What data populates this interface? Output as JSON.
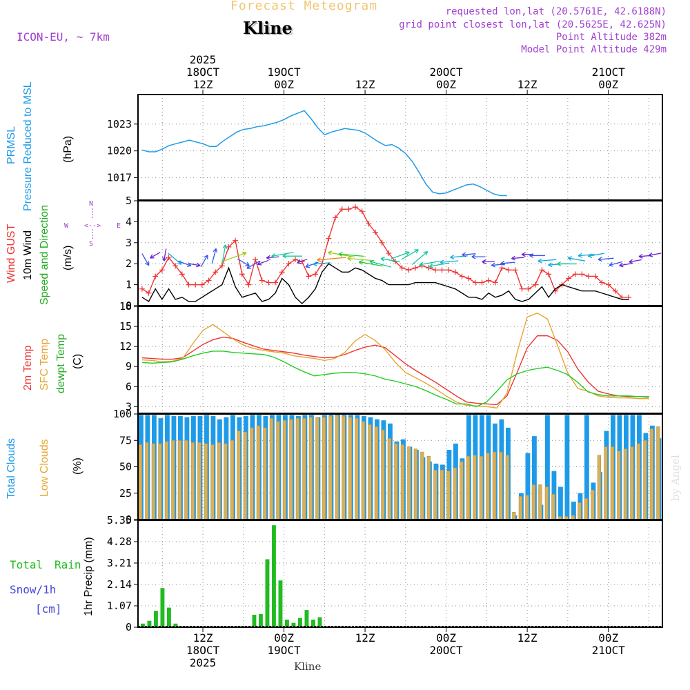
{
  "header": {
    "title": "Forecast Meteogram",
    "location": "Kline",
    "model": "ICON-EU, ~ 7km",
    "requested": "requested lon,lat (20.5761E, 42.6188N)",
    "grid": "grid point closest lon,lat (20.5625E, 42.625N)",
    "point_alt": "Point Altitude 382m",
    "model_alt": "Model Point Altitude 429m",
    "footer_location": "Kline",
    "watermark": "by Angel"
  },
  "time_axis": {
    "top": [
      {
        "t": 12,
        "l1": "2025",
        "l2": "18OCT",
        "l3": "12Z"
      },
      {
        "t": 24,
        "l1": "",
        "l2": "19OCT",
        "l3": "00Z"
      },
      {
        "t": 36,
        "l1": "",
        "l2": "",
        "l3": "12Z"
      },
      {
        "t": 48,
        "l1": "",
        "l2": "20OCT",
        "l3": "00Z"
      },
      {
        "t": 60,
        "l1": "",
        "l2": "",
        "l3": "12Z"
      },
      {
        "t": 72,
        "l1": "",
        "l2": "21OCT",
        "l3": "00Z"
      }
    ],
    "bottom": [
      {
        "t": 12,
        "l1": "12Z",
        "l2": "18OCT",
        "l3": "2025"
      },
      {
        "t": 24,
        "l1": "00Z",
        "l2": "19OCT",
        "l3": ""
      },
      {
        "t": 36,
        "l1": "12Z",
        "l2": "",
        "l3": ""
      },
      {
        "t": 48,
        "l1": "00Z",
        "l2": "20OCT",
        "l3": ""
      },
      {
        "t": 60,
        "l1": "12Z",
        "l2": "",
        "l3": ""
      },
      {
        "t": 72,
        "l1": "00Z",
        "l2": "21OCT",
        "l3": ""
      }
    ]
  },
  "panel_labels": {
    "pressure": {
      "a": "PRMSL",
      "b": "Pressure Reduced to MSL",
      "unit": "(hPa)"
    },
    "wind": {
      "a": "Wind GUST",
      "b": "10m Wind",
      "c": "Speed and Direction",
      "unit": "(m/s)",
      "compass_n": "N",
      "compass_s": "S",
      "compass_w": "W",
      "compass_e": "E"
    },
    "temp": {
      "a": "2m Temp",
      "b": "SFC Temp",
      "c": "dewpt Temp",
      "unit": "(C)"
    },
    "clouds": {
      "a": "Total Clouds",
      "b": "Low Clouds",
      "unit": "(%)"
    },
    "precip": {
      "a": "Total",
      "b": "Rain",
      "c": "Snow/1h",
      "d": "[cm]",
      "unit": "1hr Precip (mm)"
    }
  },
  "colors": {
    "pressure": "#1e9be8",
    "gust": "#ee3333",
    "wind": "#000000",
    "t2m": "#ee3333",
    "tsfc": "#e6a532",
    "dewpt": "#22cc22",
    "total_clouds": "#1e9be8",
    "low_clouds": "#d7b05c",
    "rain": "#22bb22",
    "snow": "#4444dd",
    "title": "#f0c674",
    "purple": "#a040d0"
  },
  "chart_data": [
    {
      "type": "line",
      "title": "PRMSL Pressure Reduced to MSL",
      "ylabel": "(hPa)",
      "ylim": [
        1014.5,
        1026.3
      ],
      "yticks": [
        1017,
        1020,
        1023
      ],
      "x_hours_start": 3,
      "series": [
        {
          "name": "PRMSL",
          "values": [
            1020.1,
            1019.9,
            1019.9,
            1020.2,
            1020.6,
            1020.8,
            1021.0,
            1021.2,
            1021.0,
            1020.8,
            1020.5,
            1020.5,
            1021.1,
            1021.6,
            1022.1,
            1022.4,
            1022.5,
            1022.7,
            1022.8,
            1023.0,
            1023.2,
            1023.5,
            1023.9,
            1024.2,
            1024.5,
            1023.6,
            1022.6,
            1021.8,
            1022.1,
            1022.3,
            1022.5,
            1022.4,
            1022.3,
            1022.0,
            1021.5,
            1021.0,
            1020.6,
            1020.7,
            1020.3,
            1019.7,
            1018.8,
            1017.6,
            1016.3,
            1015.4,
            1015.2,
            1015.3,
            1015.6,
            1015.9,
            1016.2,
            1016.3,
            1016.0,
            1015.6,
            1015.2,
            1015.0,
            1015.0
          ]
        }
      ]
    },
    {
      "type": "line",
      "title": "Wind GUST / 10m Wind Speed and Direction",
      "ylabel": "(m/s)",
      "ylim": [
        0,
        5
      ],
      "yticks": [
        0,
        1,
        2,
        3,
        4,
        5
      ],
      "x_hours_start": 3,
      "series": [
        {
          "name": "Wind GUST",
          "values": [
            0.8,
            0.6,
            1.4,
            1.7,
            2.3,
            1.9,
            1.5,
            1.0,
            1.0,
            1.0,
            1.2,
            1.6,
            1.9,
            2.8,
            3.1,
            1.5,
            1.0,
            2.2,
            1.2,
            1.1,
            1.1,
            1.6,
            2.0,
            2.2,
            2.1,
            1.4,
            1.5,
            2.0,
            3.2,
            4.2,
            4.6,
            4.6,
            4.7,
            4.5,
            3.9,
            3.5,
            3.0,
            2.5,
            2.1,
            1.8,
            1.7,
            1.8,
            1.9,
            1.8,
            1.7,
            1.7,
            1.7,
            1.6,
            1.4,
            1.3,
            1.1,
            1.1,
            1.2,
            1.1,
            1.8,
            1.7,
            1.7,
            0.8,
            0.8,
            1.0,
            1.7,
            1.5,
            0.7,
            1.0,
            1.3,
            1.5,
            1.5,
            1.4,
            1.4,
            1.1,
            1.0,
            0.7,
            0.4,
            0.4
          ]
        },
        {
          "name": "10m Wind",
          "values": [
            0.4,
            0.2,
            0.8,
            0.3,
            0.8,
            0.3,
            0.4,
            0.2,
            0.2,
            0.4,
            0.6,
            0.8,
            1.0,
            1.8,
            0.9,
            0.4,
            0.5,
            0.6,
            0.2,
            0.3,
            0.6,
            1.3,
            1.0,
            0.4,
            0.1,
            0.4,
            0.8,
            1.6,
            2.0,
            1.8,
            1.6,
            1.6,
            1.8,
            1.7,
            1.5,
            1.3,
            1.2,
            1.0,
            1.0,
            1.0,
            1.0,
            1.1,
            1.1,
            1.1,
            1.1,
            1.0,
            0.9,
            0.8,
            0.6,
            0.4,
            0.4,
            0.3,
            0.6,
            0.4,
            0.5,
            0.7,
            0.3,
            0.2,
            0.3,
            0.6,
            0.9,
            0.4,
            0.8,
            1.0,
            0.9,
            0.8,
            0.7,
            0.7,
            0.7,
            0.6,
            0.5,
            0.4,
            0.3,
            0.3
          ]
        }
      ]
    },
    {
      "type": "line",
      "title": "2m Temp / SFC Temp / dewpt Temp",
      "ylabel": "(C)",
      "ylim": [
        2,
        18
      ],
      "yticks": [
        3,
        6,
        9,
        12,
        15,
        18
      ],
      "x_hours_start": 3,
      "series": [
        {
          "name": "2m Temp",
          "values": [
            10.3,
            10.2,
            10.1,
            10.1,
            10.3,
            11.3,
            12.3,
            13.0,
            13.4,
            13.2,
            12.6,
            12.1,
            11.6,
            11.4,
            11.2,
            11.0,
            10.7,
            10.5,
            10.3,
            10.4,
            10.8,
            11.4,
            11.9,
            12.2,
            11.8,
            10.6,
            9.4,
            8.4,
            7.5,
            6.6,
            5.6,
            4.6,
            3.7,
            3.5,
            3.4,
            3.3,
            4.6,
            8.1,
            11.8,
            13.6,
            13.6,
            12.9,
            11.2,
            8.6,
            6.7,
            5.3,
            4.9,
            4.6,
            4.5,
            4.5,
            4.4
          ]
        },
        {
          "name": "SFC Temp",
          "values": [
            10.0,
            9.9,
            9.7,
            9.8,
            10.2,
            12.4,
            14.4,
            15.3,
            14.2,
            13.1,
            12.2,
            11.7,
            11.4,
            11.2,
            11.0,
            10.6,
            10.4,
            10.2,
            9.9,
            10.2,
            11.1,
            12.8,
            13.8,
            12.9,
            11.5,
            9.6,
            8.1,
            7.3,
            6.5,
            5.6,
            4.6,
            3.7,
            3.2,
            3.1,
            3.0,
            2.8,
            5.0,
            11.1,
            16.4,
            17.0,
            16.1,
            12.1,
            8.0,
            5.7,
            5.3,
            4.6,
            4.4,
            4.3,
            4.3,
            4.2,
            4.2
          ]
        },
        {
          "name": "dewpt Temp",
          "values": [
            9.6,
            9.5,
            9.6,
            9.7,
            10.1,
            10.6,
            11.0,
            11.3,
            11.3,
            11.1,
            11.0,
            10.9,
            10.8,
            10.4,
            9.7,
            8.9,
            8.2,
            7.6,
            7.8,
            8.0,
            8.1,
            8.1,
            7.9,
            7.6,
            7.1,
            6.8,
            6.4,
            6.0,
            5.4,
            4.7,
            4.1,
            3.4,
            3.4,
            3.0,
            3.7,
            5.3,
            7.0,
            7.9,
            8.4,
            8.7,
            8.9,
            8.4,
            7.8,
            6.6,
            5.2,
            4.8,
            4.6,
            4.6,
            4.6,
            4.5,
            4.5
          ]
        }
      ]
    },
    {
      "type": "bar",
      "title": "Total Clouds / Low Clouds",
      "ylabel": "(%)",
      "ylim": [
        0,
        100
      ],
      "yticks": [
        0,
        25,
        50,
        75,
        100
      ],
      "x_hours_start": 3,
      "series": [
        {
          "name": "Total Clouds",
          "values": [
            99,
            99,
            99,
            96,
            99,
            98,
            98,
            97,
            98,
            98,
            99,
            98,
            95,
            97,
            99,
            97,
            98,
            99,
            99,
            98,
            99,
            99,
            99,
            99,
            98,
            99,
            99,
            97,
            99,
            99,
            100,
            99,
            99,
            99,
            98,
            97,
            95,
            94,
            91,
            74,
            76,
            69,
            66,
            59,
            55,
            53,
            52,
            66,
            72,
            58,
            99,
            99,
            99,
            99,
            91,
            95,
            87,
            4,
            25,
            63,
            79,
            14,
            99,
            46,
            31,
            99,
            17,
            25,
            99,
            35,
            45,
            84,
            99,
            99,
            99,
            99,
            99,
            82,
            89,
            77
          ]
        },
        {
          "name": "Low Clouds",
          "values": [
            71,
            73,
            72,
            72,
            74,
            75,
            75,
            75,
            73,
            73,
            72,
            71,
            73,
            72,
            75,
            84,
            83,
            87,
            89,
            87,
            96,
            93,
            94,
            95,
            96,
            96,
            97,
            97,
            97,
            98,
            99,
            98,
            97,
            96,
            93,
            90,
            88,
            85,
            77,
            72,
            71,
            69,
            67,
            64,
            60,
            47,
            47,
            46,
            49,
            55,
            60,
            61,
            60,
            63,
            64,
            64,
            61,
            7,
            22,
            23,
            33,
            33,
            31,
            24,
            3,
            3,
            4,
            16,
            20,
            28,
            61,
            69,
            69,
            65,
            67,
            69,
            72,
            75,
            86,
            88
          ]
        }
      ]
    },
    {
      "type": "bar",
      "title": "Total Rain Snow/1h [cm]",
      "ylabel": "1hr Precip (mm)",
      "ylim": [
        0,
        5.35
      ],
      "yticks": [
        0,
        1.07,
        2.14,
        3.21,
        4.28,
        5.35
      ],
      "x_hours_start": 3,
      "series": [
        {
          "name": "Total Rain",
          "values": [
            0.18,
            0.32,
            0.82,
            1.96,
            0.98,
            0.18,
            0,
            0,
            0,
            0,
            0,
            0,
            0,
            0,
            0,
            0,
            0,
            0.62,
            0.66,
            3.4,
            5.1,
            2.34,
            0.38,
            0.22,
            0.46,
            0.86,
            0.38,
            0.5,
            0,
            0,
            0,
            0,
            0.04
          ]
        },
        {
          "name": "Snow/1h",
          "values": []
        }
      ]
    }
  ]
}
